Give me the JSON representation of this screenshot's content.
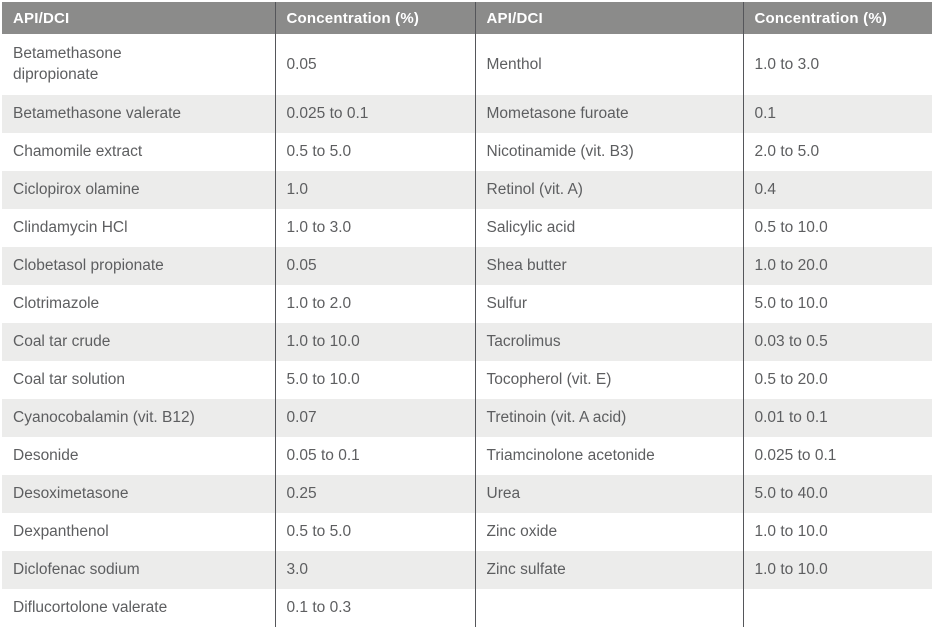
{
  "table": {
    "header": {
      "api_label": "API/DCI",
      "conc_label": "Concentration (%)"
    },
    "colors": {
      "header_bg": "#8b8b8a",
      "header_text": "#ffffff",
      "row_bg": "#ffffff",
      "row_alt_bg": "#ececeb",
      "divider": "#55565a",
      "body_text": "#5d5e60"
    },
    "left_rows": [
      {
        "api": "Betamethasone dipropionate",
        "conc": "0.05"
      },
      {
        "api": "Betamethasone valerate",
        "conc": "0.025 to 0.1"
      },
      {
        "api": "Chamomile extract",
        "conc": "0.5 to 5.0"
      },
      {
        "api": "Ciclopirox olamine",
        "conc": "1.0"
      },
      {
        "api": "Clindamycin HCl",
        "conc": "1.0 to 3.0"
      },
      {
        "api": "Clobetasol propionate",
        "conc": "0.05"
      },
      {
        "api": "Clotrimazole",
        "conc": "1.0 to 2.0"
      },
      {
        "api": "Coal tar crude",
        "conc": "1.0 to 10.0"
      },
      {
        "api": "Coal tar solution",
        "conc": "5.0 to 10.0"
      },
      {
        "api": "Cyanocobalamin (vit. B12)",
        "conc": "0.07"
      },
      {
        "api": "Desonide",
        "conc": "0.05 to 0.1"
      },
      {
        "api": "Desoximetasone",
        "conc": "0.25"
      },
      {
        "api": "Dexpanthenol",
        "conc": "0.5 to 5.0"
      },
      {
        "api": "Diclofenac sodium",
        "conc": "3.0"
      },
      {
        "api": "Diflucortolone valerate",
        "conc": "0.1 to 0.3"
      }
    ],
    "right_rows": [
      {
        "api": "Menthol",
        "conc": "1.0 to 3.0"
      },
      {
        "api": "Mometasone furoate",
        "conc": "0.1"
      },
      {
        "api": "Nicotinamide (vit. B3)",
        "conc": "2.0 to 5.0"
      },
      {
        "api": "Retinol (vit. A)",
        "conc": "0.4"
      },
      {
        "api": "Salicylic acid",
        "conc": "0.5 to 10.0"
      },
      {
        "api": "Shea butter",
        "conc": "1.0 to 20.0"
      },
      {
        "api": "Sulfur",
        "conc": "5.0 to 10.0"
      },
      {
        "api": "Tacrolimus",
        "conc": "0.03 to 0.5"
      },
      {
        "api": "Tocopherol (vit. E)",
        "conc": "0.5 to 20.0"
      },
      {
        "api": "Tretinoin (vit. A acid)",
        "conc": "0.01 to 0.1"
      },
      {
        "api": "Triamcinolone acetonide",
        "conc": "0.025 to 0.1"
      },
      {
        "api": "Urea",
        "conc": "5.0 to 40.0"
      },
      {
        "api": "Zinc oxide",
        "conc": "1.0 to 10.0"
      },
      {
        "api": "Zinc sulfate",
        "conc": "1.0 to 10.0"
      },
      {
        "api": "",
        "conc": ""
      }
    ]
  }
}
